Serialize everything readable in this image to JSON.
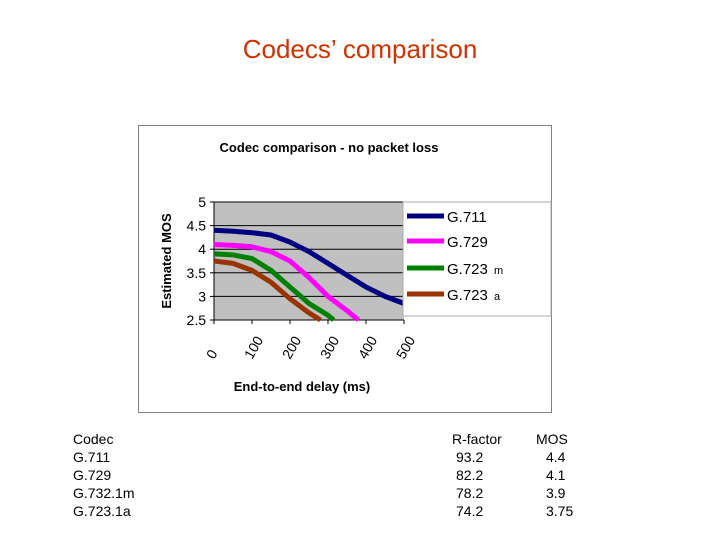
{
  "slide": {
    "title": "Codecs’ comparison"
  },
  "chart_data": {
    "type": "line",
    "title": "Codec comparison - no packet loss",
    "xlabel": "End-to-end delay (ms)",
    "ylabel": "Estimated MOS",
    "xlim": [
      0,
      500
    ],
    "ylim": [
      2.5,
      5
    ],
    "x_ticks": [
      "0",
      "100",
      "200",
      "300",
      "400",
      "500"
    ],
    "y_ticks": [
      "5",
      "4.5",
      "4",
      "3.5",
      "3",
      "2.5"
    ],
    "grid": true,
    "legend_position": "right",
    "series": [
      {
        "name": "G.711",
        "suffix": "",
        "color": "#000080",
        "x": [
          0,
          50,
          100,
          150,
          200,
          250,
          300,
          350,
          400,
          450,
          500
        ],
        "y": [
          4.4,
          4.38,
          4.35,
          4.3,
          4.15,
          3.95,
          3.7,
          3.45,
          3.2,
          3.0,
          2.85
        ]
      },
      {
        "name": "G.729",
        "suffix": "",
        "color": "#ff00ff",
        "x": [
          0,
          50,
          100,
          150,
          200,
          250,
          300,
          350,
          380
        ],
        "y": [
          4.1,
          4.08,
          4.05,
          3.95,
          3.75,
          3.4,
          3.0,
          2.7,
          2.5
        ]
      },
      {
        "name": "G.723",
        "suffix": "m",
        "color": "#008000",
        "x": [
          0,
          50,
          100,
          150,
          200,
          250,
          300,
          315
        ],
        "y": [
          3.9,
          3.88,
          3.8,
          3.55,
          3.2,
          2.85,
          2.6,
          2.5
        ]
      },
      {
        "name": "G.723",
        "suffix": "a",
        "color": "#993300",
        "x": [
          0,
          50,
          100,
          150,
          200,
          250,
          280
        ],
        "y": [
          3.75,
          3.7,
          3.55,
          3.3,
          2.95,
          2.65,
          2.5
        ]
      }
    ]
  },
  "table": {
    "headers": {
      "codec": "Codec",
      "rfactor": "R-factor",
      "mos": "MOS"
    },
    "rows": [
      {
        "codec": "G.711",
        "rfactor": "93.2",
        "mos": "4.4"
      },
      {
        "codec": "G.729",
        "rfactor": "82.2",
        "mos": "4.1"
      },
      {
        "codec": "G.732.1m",
        "rfactor": "78.2",
        "mos": "3.9"
      },
      {
        "codec": "G.723.1a",
        "rfactor": "74.2",
        "mos": "3.75"
      }
    ]
  }
}
